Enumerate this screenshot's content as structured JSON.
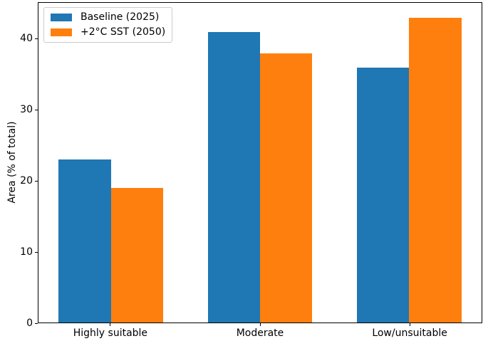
{
  "chart_data": {
    "type": "bar",
    "ylabel": "Area (% of total)",
    "categories": [
      "Highly suitable",
      "Moderate",
      "Low/unsuitable"
    ],
    "series": [
      {
        "name": "Baseline (2025)",
        "color": "#1f77b4",
        "values": [
          23,
          41,
          36
        ]
      },
      {
        "name": "+2°C SST (2050)",
        "color": "#ff7f0e",
        "values": [
          19,
          38,
          43
        ]
      }
    ],
    "yticks": [
      0,
      10,
      20,
      30,
      40
    ],
    "ylim": [
      0,
      45.15
    ],
    "bar_width": 0.35,
    "grid": false,
    "legend_position": "upper left",
    "colors": {
      "axis": "#000000",
      "legend_border": "#cccccc",
      "background": "#ffffff"
    }
  }
}
